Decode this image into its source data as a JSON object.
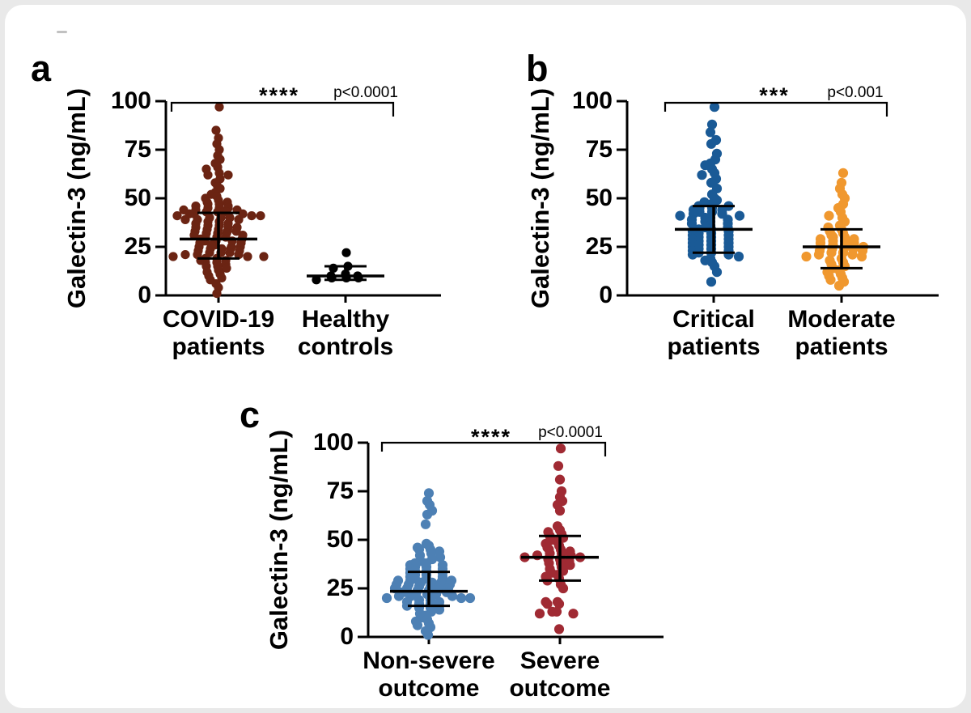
{
  "figure": {
    "background": "#e9e9e9",
    "card_background": "#ffffff",
    "text_color": "#000000"
  },
  "chart_data": [
    {
      "type": "scatter",
      "panel_label": "a",
      "ylabel": "Galectin-3 (ng/mL)",
      "ylim": [
        0,
        100
      ],
      "yticks": [
        0,
        25,
        50,
        75,
        100
      ],
      "grid": false,
      "significance": {
        "stars": "****",
        "p_label": "p<0.0001"
      },
      "error_bar_style": "median with interquartile range",
      "groups": [
        {
          "label_line1": "COVID-19",
          "label_line2": "patients",
          "color": "#6b2413",
          "median": 29,
          "q1": 19,
          "q3": 42.5,
          "values": [
            97,
            85,
            81,
            78,
            75,
            72,
            70,
            68,
            66,
            65,
            63,
            62,
            62,
            60,
            58,
            56,
            55,
            53,
            52,
            51,
            50,
            49,
            48,
            48,
            47,
            47,
            46,
            46,
            45,
            45,
            45,
            44,
            44,
            44,
            43,
            43,
            43,
            42,
            42,
            42,
            41,
            41,
            41,
            40,
            40,
            40,
            39,
            39,
            39,
            38,
            38,
            37,
            37,
            36,
            36,
            35,
            35,
            35,
            34,
            34,
            33,
            33,
            33,
            32,
            32,
            32,
            31,
            31,
            30,
            30,
            30,
            29,
            29,
            28,
            28,
            28,
            27,
            27,
            26,
            26,
            25,
            25,
            25,
            24,
            24,
            24,
            23,
            23,
            22,
            22,
            22,
            21,
            21,
            21,
            20,
            20,
            20,
            19,
            19,
            18,
            18,
            17,
            17,
            16,
            15,
            15,
            14,
            13,
            12,
            11,
            10,
            9,
            8,
            6,
            4,
            1
          ]
        },
        {
          "label_line1": "Healthy",
          "label_line2": "controls",
          "color": "#000000",
          "median": 10,
          "q1": 8,
          "q3": 15,
          "values": [
            22,
            15,
            14,
            11,
            10,
            10,
            9,
            9,
            9,
            8
          ]
        }
      ]
    },
    {
      "type": "scatter",
      "panel_label": "b",
      "ylabel": "Galectin-3 (ng/mL)",
      "ylim": [
        0,
        100
      ],
      "yticks": [
        0,
        25,
        50,
        75,
        100
      ],
      "grid": false,
      "significance": {
        "stars": "***",
        "p_label": "p<0.001"
      },
      "error_bar_style": "median with interquartile range",
      "groups": [
        {
          "label_line1": "Critical",
          "label_line2": "patients",
          "color": "#1a5a96",
          "median": 34,
          "q1": 22,
          "q3": 46,
          "values": [
            97,
            88,
            84,
            80,
            78,
            73,
            70,
            68,
            67,
            65,
            63,
            62,
            60,
            58,
            55,
            52,
            50,
            49,
            48,
            47,
            46,
            46,
            45,
            45,
            44,
            44,
            43,
            43,
            42,
            42,
            41,
            41,
            40,
            40,
            39,
            39,
            38,
            38,
            37,
            37,
            36,
            35,
            35,
            34,
            34,
            33,
            33,
            32,
            32,
            31,
            31,
            30,
            30,
            29,
            29,
            28,
            28,
            27,
            27,
            26,
            26,
            25,
            25,
            24,
            24,
            23,
            23,
            22,
            22,
            21,
            21,
            20,
            19,
            18,
            17,
            15,
            12,
            7
          ]
        },
        {
          "label_line1": "Moderate",
          "label_line2": "patients",
          "color": "#f0982f",
          "median": 25,
          "q1": 14,
          "q3": 34,
          "values": [
            63,
            58,
            55,
            52,
            50,
            47,
            45,
            43,
            41,
            40,
            38,
            36,
            35,
            34,
            33,
            32,
            31,
            30,
            30,
            29,
            29,
            28,
            28,
            27,
            27,
            26,
            26,
            25,
            25,
            25,
            24,
            24,
            24,
            23,
            23,
            22,
            22,
            21,
            21,
            20,
            20,
            19,
            18,
            17,
            16,
            15,
            14,
            13,
            12,
            11,
            10,
            9,
            8,
            7,
            5
          ]
        }
      ]
    },
    {
      "type": "scatter",
      "panel_label": "c",
      "ylabel": "Galectin-3 (ng/mL)",
      "ylim": [
        0,
        100
      ],
      "yticks": [
        0,
        25,
        50,
        75,
        100
      ],
      "grid": false,
      "significance": {
        "stars": "****",
        "p_label": "p<0.0001"
      },
      "error_bar_style": "median with interquartile range",
      "groups": [
        {
          "label_line1": "Non-severe",
          "label_line2": "outcome",
          "color": "#4d80b4",
          "median": 23.5,
          "q1": 16,
          "q3": 33.5,
          "values": [
            74,
            70,
            68,
            65,
            63,
            58,
            48,
            47,
            46,
            45,
            45,
            44,
            43,
            42,
            41,
            40,
            39,
            38,
            38,
            37,
            37,
            36,
            36,
            35,
            35,
            34,
            34,
            33,
            33,
            32,
            32,
            31,
            31,
            30,
            30,
            30,
            29,
            29,
            29,
            28,
            28,
            28,
            27,
            27,
            27,
            26,
            26,
            26,
            25,
            25,
            25,
            24,
            24,
            24,
            23,
            23,
            23,
            22,
            22,
            22,
            21,
            21,
            21,
            20,
            20,
            20,
            19,
            19,
            18,
            18,
            17,
            17,
            16,
            16,
            15,
            15,
            14,
            13,
            12,
            11,
            10,
            9,
            8,
            7,
            6,
            5,
            3,
            1
          ]
        },
        {
          "label_line1": "Severe",
          "label_line2": "outcome",
          "color": "#a02a33",
          "median": 41,
          "q1": 29,
          "q3": 52,
          "values": [
            97,
            88,
            81,
            75,
            72,
            70,
            68,
            65,
            57,
            55,
            54,
            53,
            52,
            51,
            50,
            49,
            48,
            47,
            46,
            45,
            45,
            44,
            43,
            43,
            42,
            42,
            41,
            41,
            40,
            40,
            39,
            38,
            38,
            37,
            36,
            35,
            34,
            33,
            32,
            31,
            30,
            29,
            27,
            25,
            18,
            18,
            17,
            17,
            13,
            13,
            12,
            12,
            4
          ]
        }
      ]
    }
  ]
}
